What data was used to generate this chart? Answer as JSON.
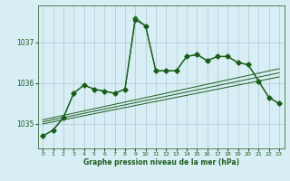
{
  "bg_color": "#d8eef5",
  "grid_color": "#b0c8d0",
  "line_color_dark": "#1a5c1a",
  "line_color_med": "#2d7a2d",
  "xlabel": "Graphe pression niveau de la mer (hPa)",
  "ylim": [
    1034.4,
    1037.9
  ],
  "xlim": [
    -0.5,
    23.5
  ],
  "yticks": [
    1035,
    1036,
    1037
  ],
  "xticks": [
    0,
    1,
    2,
    3,
    4,
    5,
    6,
    7,
    8,
    9,
    10,
    11,
    12,
    13,
    14,
    15,
    16,
    17,
    18,
    19,
    20,
    21,
    22,
    23
  ],
  "series1": [
    1034.7,
    1034.85,
    1035.15,
    1035.75,
    1035.95,
    1035.85,
    1035.8,
    1035.75,
    1035.85,
    1037.55,
    1037.4,
    1036.3,
    1036.3,
    1036.3,
    1036.65,
    1036.7,
    1036.55,
    1036.65,
    1036.65,
    1036.5,
    1036.45,
    1036.05,
    1035.65,
    1035.5
  ],
  "series2": [
    1034.7,
    1034.85,
    1035.15,
    1035.75,
    1035.95,
    1035.85,
    1035.8,
    1035.75,
    1035.85,
    1037.6,
    1037.4,
    1036.3,
    1036.3,
    1036.3,
    1036.65,
    1036.7,
    1036.55,
    1036.65,
    1036.65,
    1036.5,
    1036.45,
    1036.05,
    1035.65,
    1035.5
  ],
  "trend1_x": [
    0,
    23
  ],
  "trend1_y": [
    1035.05,
    1036.25
  ],
  "trend2_x": [
    0,
    23
  ],
  "trend2_y": [
    1035.1,
    1036.35
  ],
  "trend3_x": [
    0,
    23
  ],
  "trend3_y": [
    1035.0,
    1036.15
  ]
}
